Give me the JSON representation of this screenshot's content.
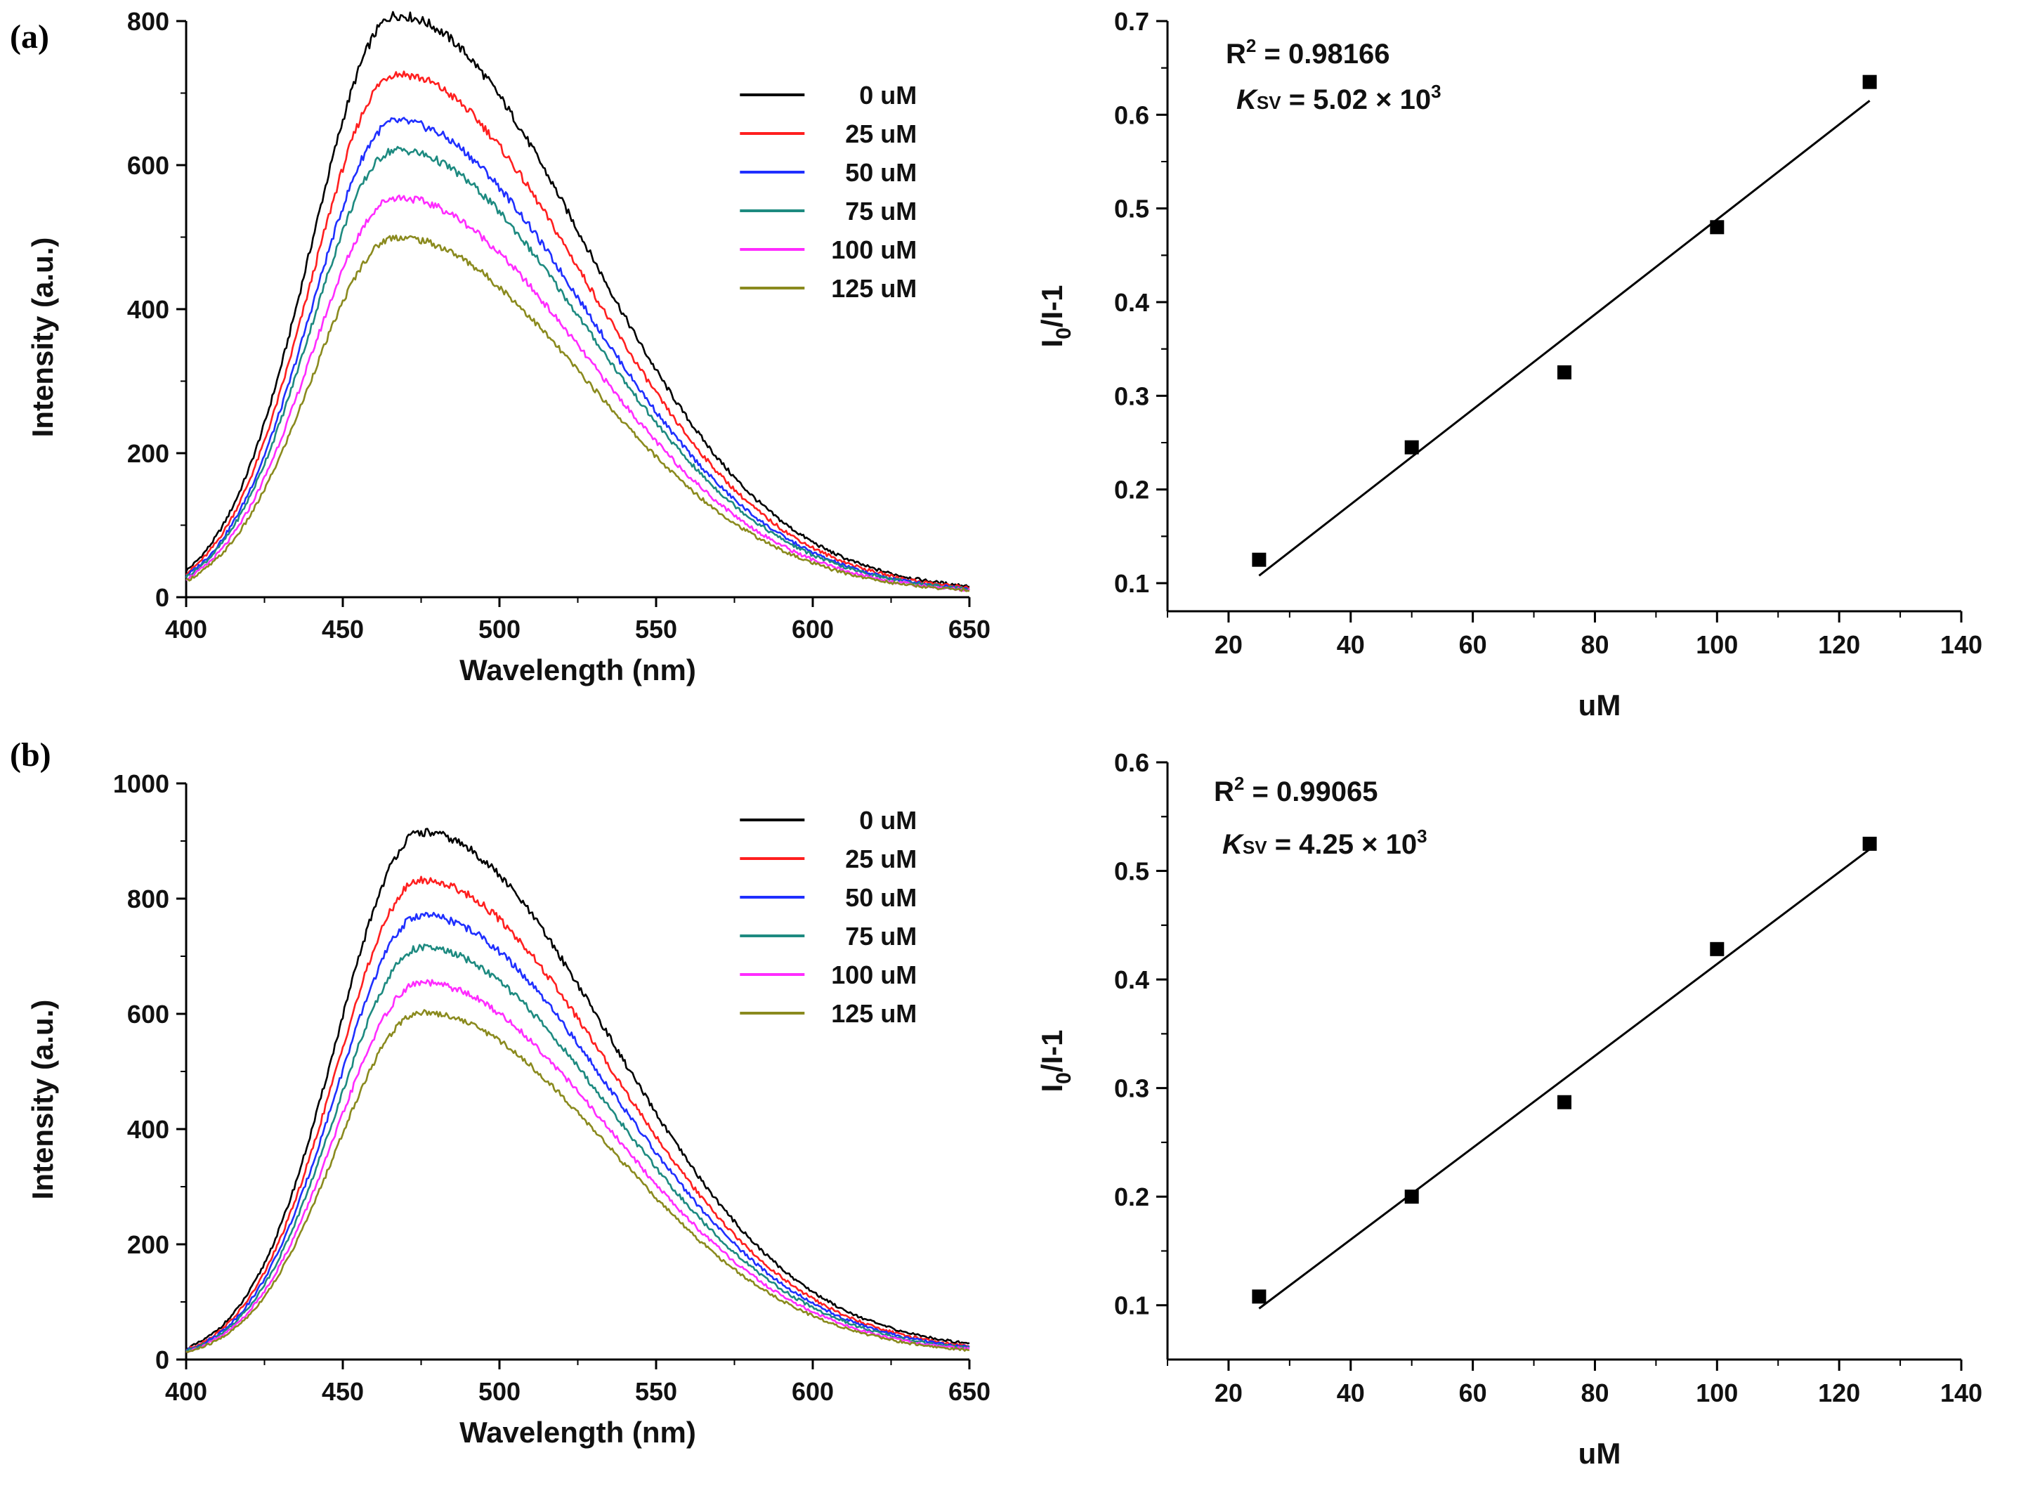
{
  "panels": [
    {
      "label": "(a)",
      "eq_r2": "R",
      "eq_r2_sup": "2",
      "eq_r2_value": " = 0.98166",
      "eq_k": "K",
      "eq_k_sub": "SV",
      "eq_k_value": " = 5.02 × 10",
      "eq_k_sup": "3"
    },
    {
      "label": "(b)",
      "eq_r2": "R",
      "eq_r2_sup": "2",
      "eq_r2_value": " = 0.99065",
      "eq_k": "K",
      "eq_k_sub": "SV",
      "eq_k_value": " = 4.25 × 10",
      "eq_k_sup": "3"
    }
  ],
  "colors": {
    "0 uM": "#000000",
    "25 uM": "#ff1f1f",
    "50 uM": "#1f2fff",
    "75 uM": "#1d8a80",
    "100 uM": "#ff2cff",
    "125 uM": "#8a8a1e",
    "axis": "#000000",
    "marker": "#000000"
  },
  "chart_data": [
    {
      "id": "a-spectra",
      "type": "line",
      "title": "",
      "xlabel": "Wavelength (nm)",
      "ylabel": "Intensity (a.u.)",
      "xlim": [
        400,
        650
      ],
      "ylim": [
        0,
        800
      ],
      "xticks": [
        400,
        450,
        500,
        550,
        600,
        650
      ],
      "yticks": [
        0,
        200,
        400,
        600,
        800
      ],
      "peak_x": 467,
      "series": [
        {
          "name": "0 uM",
          "peak": 800,
          "tail": 8
        },
        {
          "name": "25 uM",
          "peak": 720,
          "tail": 7
        },
        {
          "name": "50 uM",
          "peak": 655,
          "tail": 6
        },
        {
          "name": "75 uM",
          "peak": 615,
          "tail": 6
        },
        {
          "name": "100 uM",
          "peak": 550,
          "tail": 5
        },
        {
          "name": "125 uM",
          "peak": 495,
          "tail": 5
        }
      ],
      "legend": "top-right"
    },
    {
      "id": "a-sv",
      "type": "scatter",
      "title": "",
      "xlabel": "uM",
      "ylabel": "I0/I-1",
      "ylabel_main": "I",
      "ylabel_sub": "0",
      "ylabel_rest": "/I-1",
      "xlim": [
        10,
        140
      ],
      "ylim": [
        0.07,
        0.7
      ],
      "xticks": [
        20,
        40,
        60,
        80,
        100,
        120,
        140
      ],
      "yticks": [
        0.1,
        0.2,
        0.3,
        0.4,
        0.5,
        0.6,
        0.7
      ],
      "ytick_labels": [
        "0.1",
        "0.2",
        "0.3",
        "0.4",
        "0.5",
        "0.6",
        "0.7"
      ],
      "x": [
        25,
        50,
        75,
        100,
        125
      ],
      "y": [
        0.125,
        0.245,
        0.325,
        0.48,
        0.635
      ],
      "fit": {
        "x": [
          25,
          125
        ],
        "y": [
          0.108,
          0.615
        ]
      }
    },
    {
      "id": "b-spectra",
      "type": "line",
      "title": "",
      "xlabel": "Wavelength (nm)",
      "ylabel": "Intensity (a.u.)",
      "xlim": [
        400,
        650
      ],
      "ylim": [
        0,
        1000
      ],
      "xticks": [
        400,
        450,
        500,
        550,
        600,
        650
      ],
      "yticks": [
        0,
        200,
        400,
        600,
        800,
        1000
      ],
      "peak_x": 475,
      "series": [
        {
          "name": "0 uM",
          "peak": 900,
          "tail": 15
        },
        {
          "name": "25 uM",
          "peak": 820,
          "tail": 12
        },
        {
          "name": "50 uM",
          "peak": 760,
          "tail": 11
        },
        {
          "name": "75 uM",
          "peak": 705,
          "tail": 10
        },
        {
          "name": "100 uM",
          "peak": 645,
          "tail": 9
        },
        {
          "name": "125 uM",
          "peak": 595,
          "tail": 8
        }
      ],
      "legend": "top-right"
    },
    {
      "id": "b-sv",
      "type": "scatter",
      "title": "",
      "xlabel": "uM",
      "ylabel": "I0/I-1",
      "ylabel_main": "I",
      "ylabel_sub": "0",
      "ylabel_rest": "/I-1",
      "xlim": [
        10,
        140
      ],
      "ylim": [
        0.05,
        0.6
      ],
      "xticks": [
        20,
        40,
        60,
        80,
        100,
        120,
        140
      ],
      "yticks": [
        0.1,
        0.2,
        0.3,
        0.4,
        0.5,
        0.6
      ],
      "ytick_labels": [
        "0.1",
        "0.2",
        "0.3",
        "0.4",
        "0.5",
        "0.6"
      ],
      "x": [
        25,
        50,
        75,
        100,
        125
      ],
      "y": [
        0.108,
        0.2,
        0.287,
        0.428,
        0.525
      ],
      "fit": {
        "x": [
          25,
          125
        ],
        "y": [
          0.097,
          0.52
        ]
      }
    }
  ]
}
